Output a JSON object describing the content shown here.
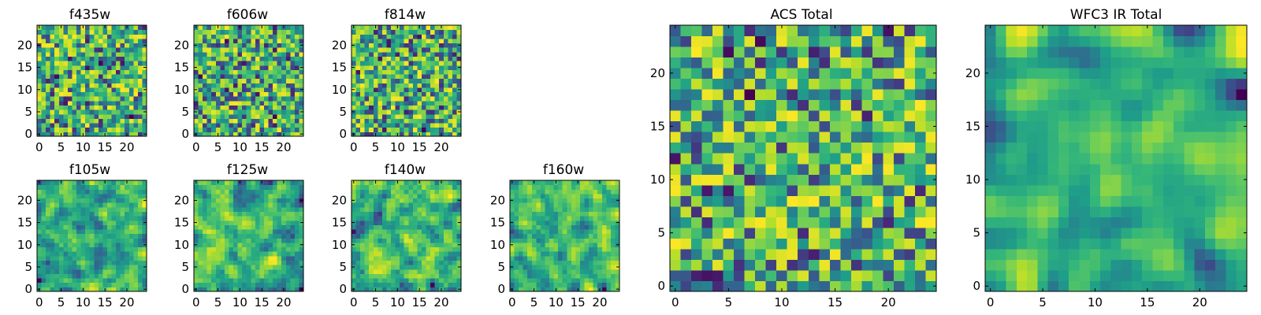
{
  "chart_data": [
    {
      "type": "heatmap",
      "title": "f435w",
      "xlim": [
        0,
        24
      ],
      "ylim": [
        0,
        24
      ],
      "xticks": [
        0,
        5,
        10,
        15,
        20
      ],
      "yticks": [
        0,
        5,
        10,
        15,
        20
      ],
      "grid_size": 25,
      "seed": 11,
      "smooth": 0,
      "colormap": "viridis"
    },
    {
      "type": "heatmap",
      "title": "f606w",
      "xlim": [
        0,
        24
      ],
      "ylim": [
        0,
        24
      ],
      "xticks": [
        0,
        5,
        10,
        15,
        20
      ],
      "yticks": [
        0,
        5,
        10,
        15,
        20
      ],
      "grid_size": 25,
      "seed": 23,
      "smooth": 0,
      "colormap": "viridis"
    },
    {
      "type": "heatmap",
      "title": "f814w",
      "xlim": [
        0,
        24
      ],
      "ylim": [
        0,
        24
      ],
      "xticks": [
        0,
        5,
        10,
        15,
        20
      ],
      "yticks": [
        0,
        5,
        10,
        15,
        20
      ],
      "grid_size": 25,
      "seed": 37,
      "smooth": 0,
      "colormap": "viridis"
    },
    {
      "type": "heatmap",
      "title": "f105w",
      "xlim": [
        0,
        24
      ],
      "ylim": [
        0,
        24
      ],
      "xticks": [
        0,
        5,
        10,
        15,
        20
      ],
      "yticks": [
        0,
        5,
        10,
        15,
        20
      ],
      "grid_size": 25,
      "seed": 41,
      "smooth": 1,
      "colormap": "viridis"
    },
    {
      "type": "heatmap",
      "title": "f125w",
      "xlim": [
        0,
        24
      ],
      "ylim": [
        0,
        24
      ],
      "xticks": [
        0,
        5,
        10,
        15,
        20
      ],
      "yticks": [
        0,
        5,
        10,
        15,
        20
      ],
      "grid_size": 25,
      "seed": 53,
      "smooth": 1,
      "colormap": "viridis"
    },
    {
      "type": "heatmap",
      "title": "f140w",
      "xlim": [
        0,
        24
      ],
      "ylim": [
        0,
        24
      ],
      "xticks": [
        0,
        5,
        10,
        15,
        20
      ],
      "yticks": [
        0,
        5,
        10,
        15,
        20
      ],
      "grid_size": 25,
      "seed": 67,
      "smooth": 1,
      "colormap": "viridis"
    },
    {
      "type": "heatmap",
      "title": "f160w",
      "xlim": [
        0,
        24
      ],
      "ylim": [
        0,
        24
      ],
      "xticks": [
        0,
        5,
        10,
        15,
        20
      ],
      "yticks": [
        0,
        5,
        10,
        15,
        20
      ],
      "grid_size": 25,
      "seed": 79,
      "smooth": 1,
      "colormap": "viridis"
    },
    {
      "type": "heatmap",
      "title": "ACS Total",
      "xlim": [
        0,
        24
      ],
      "ylim": [
        0,
        24
      ],
      "xticks": [
        0,
        5,
        10,
        15,
        20
      ],
      "yticks": [
        0,
        5,
        10,
        15,
        20
      ],
      "grid_size": 25,
      "seed": 97,
      "smooth": 0,
      "colormap": "viridis"
    },
    {
      "type": "heatmap",
      "title": "WFC3 IR Total",
      "xlim": [
        0,
        24
      ],
      "ylim": [
        0,
        24
      ],
      "xticks": [
        0,
        5,
        10,
        15,
        20
      ],
      "yticks": [
        0,
        5,
        10,
        15,
        20
      ],
      "grid_size": 25,
      "seed": 113,
      "smooth": 2,
      "colormap": "viridis"
    }
  ]
}
